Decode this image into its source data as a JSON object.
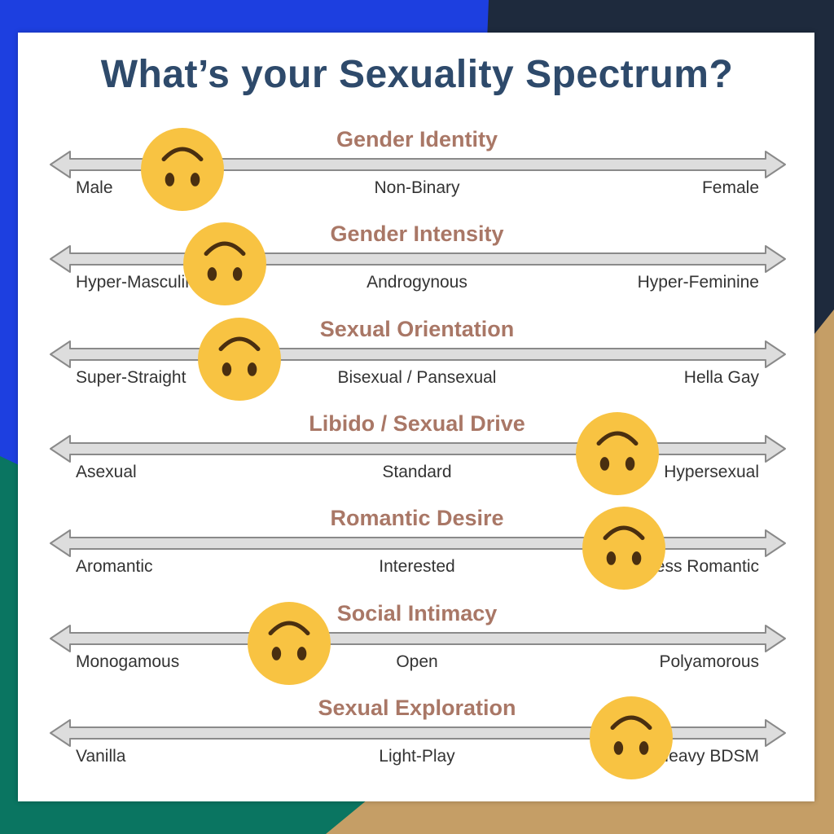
{
  "title": "What’s your Sexuality Spectrum?",
  "colors": {
    "title": "#2e4a6b",
    "row_title": "#a97766",
    "arrow_fill": "#dddddd",
    "arrow_stroke": "#8a8a8a",
    "emoji_face": "#f8c342",
    "emoji_feature": "#4a2f10",
    "bg_blue": "#1d3fe0",
    "bg_navy": "#1e2a3d",
    "bg_teal": "#0a7561",
    "bg_tan": "#c59e66"
  },
  "emoji_icon": "upside-down-face-icon",
  "rows": [
    {
      "title": "Gender Identity",
      "left": "Male",
      "middle": "Non-Binary",
      "right": "Female",
      "level": 0.17
    },
    {
      "title": "Gender Intensity",
      "left": "Hyper-Masculine",
      "middle": "Androgynous",
      "right": "Hyper-Feminine",
      "level": 0.23
    },
    {
      "title": "Sexual Orientation",
      "left": "Super-Straight",
      "middle": "Bisexual / Pansexual",
      "right": "Hella Gay",
      "level": 0.25
    },
    {
      "title": "Libido / Sexual Drive",
      "left": "Asexual",
      "middle": "Standard",
      "right": "Hypersexual",
      "level": 0.78
    },
    {
      "title": "Romantic Desire",
      "left": "Aromantic",
      "middle": "Interested",
      "right": "Hopeless Romantic",
      "level": 0.79
    },
    {
      "title": "Social Intimacy",
      "left": "Monogamous",
      "middle": "Open",
      "right": "Polyamorous",
      "level": 0.32
    },
    {
      "title": "Sexual Exploration",
      "left": "Vanilla",
      "middle": "Light-Play",
      "right": "Heavy BDSM",
      "level": 0.8
    }
  ]
}
